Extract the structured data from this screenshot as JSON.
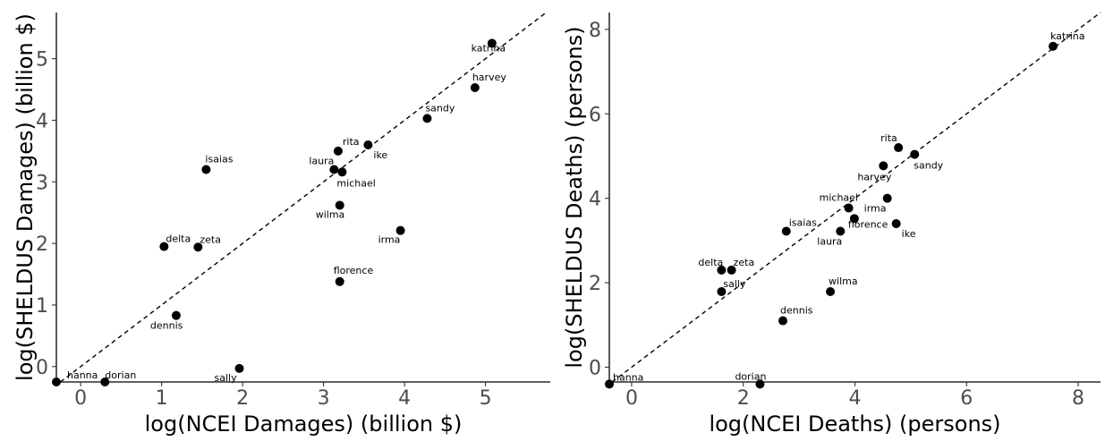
{
  "chart_data": [
    {
      "type": "scatter",
      "xlabel": "log(NCEI Damages) (billion $)",
      "ylabel": "log(SHELDUS Damages) (billion $)",
      "xlim": [
        -0.3,
        5.8
      ],
      "ylim": [
        -0.25,
        5.75
      ],
      "xticks": [
        0,
        1,
        2,
        3,
        4,
        5
      ],
      "yticks": [
        0,
        1,
        2,
        3,
        4,
        5
      ],
      "reference_line": "y = x (dashed)",
      "grid": false,
      "points": [
        {
          "label": "katrina",
          "x": 5.08,
          "y": 5.25
        },
        {
          "label": "harvey",
          "x": 4.87,
          "y": 4.53
        },
        {
          "label": "sandy",
          "x": 4.28,
          "y": 4.03
        },
        {
          "label": "rita",
          "x": 3.18,
          "y": 3.5
        },
        {
          "label": "ike",
          "x": 3.55,
          "y": 3.6
        },
        {
          "label": "laura",
          "x": 3.13,
          "y": 3.2
        },
        {
          "label": "michael",
          "x": 3.23,
          "y": 3.16
        },
        {
          "label": "isaias",
          "x": 1.55,
          "y": 3.2
        },
        {
          "label": "wilma",
          "x": 3.2,
          "y": 2.62
        },
        {
          "label": "irma",
          "x": 3.95,
          "y": 2.21
        },
        {
          "label": "delta",
          "x": 1.03,
          "y": 1.95
        },
        {
          "label": "zeta",
          "x": 1.45,
          "y": 1.94
        },
        {
          "label": "florence",
          "x": 3.2,
          "y": 1.38
        },
        {
          "label": "dennis",
          "x": 1.18,
          "y": 0.83
        },
        {
          "label": "sally",
          "x": 1.96,
          "y": -0.03
        },
        {
          "label": "hanna",
          "x": -0.3,
          "y": -0.25
        },
        {
          "label": "dorian",
          "x": 0.3,
          "y": -0.25
        }
      ]
    },
    {
      "type": "scatter",
      "xlabel": "log(NCEI Deaths) (persons)",
      "ylabel": "log(SHELDUS Deaths) (persons)",
      "xlim": [
        -0.4,
        8.4
      ],
      "ylim": [
        -0.35,
        8.4
      ],
      "xticks": [
        0,
        2,
        4,
        6,
        8
      ],
      "yticks": [
        0,
        2,
        4,
        6,
        8
      ],
      "reference_line": "y = x (dashed)",
      "grid": false,
      "points": [
        {
          "label": "katrina",
          "x": 7.55,
          "y": 7.6
        },
        {
          "label": "rita",
          "x": 4.78,
          "y": 5.2
        },
        {
          "label": "sandy",
          "x": 5.07,
          "y": 5.04
        },
        {
          "label": "harvey",
          "x": 4.51,
          "y": 4.77
        },
        {
          "label": "irma",
          "x": 4.58,
          "y": 4.0
        },
        {
          "label": "michael",
          "x": 3.89,
          "y": 3.77
        },
        {
          "label": "florence",
          "x": 3.99,
          "y": 3.52
        },
        {
          "label": "ike",
          "x": 4.74,
          "y": 3.4
        },
        {
          "label": "laura",
          "x": 3.74,
          "y": 3.22
        },
        {
          "label": "isaias",
          "x": 2.77,
          "y": 3.22
        },
        {
          "label": "delta",
          "x": 1.61,
          "y": 2.3
        },
        {
          "label": "zeta",
          "x": 1.79,
          "y": 2.3
        },
        {
          "label": "sally",
          "x": 1.61,
          "y": 1.79
        },
        {
          "label": "wilma",
          "x": 3.56,
          "y": 1.79
        },
        {
          "label": "dennis",
          "x": 2.71,
          "y": 1.1
        },
        {
          "label": "dorian",
          "x": 2.3,
          "y": -0.4
        },
        {
          "label": "hanna",
          "x": -0.4,
          "y": -0.4
        }
      ]
    }
  ]
}
